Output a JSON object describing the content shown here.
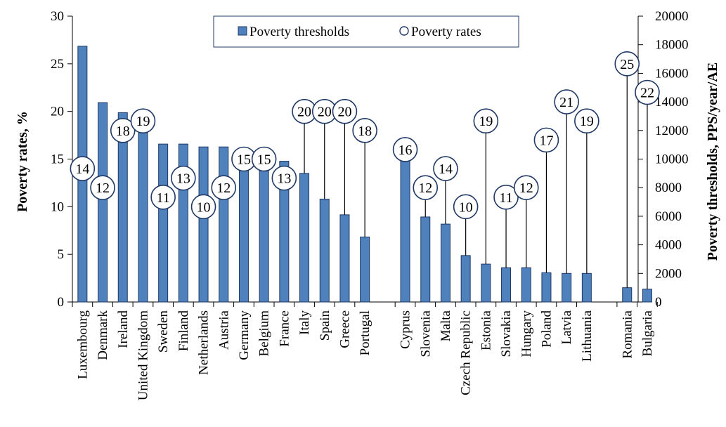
{
  "chart_data": {
    "type": "bar",
    "categories": [
      "Luxembourg",
      "Denmark",
      "Ireland",
      "United Kingdom",
      "Sweden",
      "Finland",
      "Netherlands",
      "Austria",
      "Germany",
      "Belgium",
      "France",
      "Italy",
      "Spain",
      "Greece",
      "Portugal",
      "Cyprus",
      "Slovenia",
      "Malta",
      "Czech Republic",
      "Estonia",
      "Slovakia",
      "Hungary",
      "Poland",
      "Latvia",
      "Lithuania",
      "Romania",
      "Bulgaria"
    ],
    "groups": [
      15,
      10,
      2
    ],
    "series": [
      {
        "name": "Poverty thresholds",
        "axis": "right",
        "style": "bar",
        "values": [
          17900,
          13950,
          13250,
          12450,
          11050,
          11050,
          10850,
          10850,
          10100,
          9750,
          9850,
          9000,
          7200,
          6100,
          4550,
          9950,
          5950,
          5450,
          3250,
          2650,
          2400,
          2400,
          2050,
          2000,
          2000,
          1000,
          900
        ]
      },
      {
        "name": "Poverty rates",
        "axis": "left",
        "style": "circle-label",
        "values": [
          14,
          12,
          18,
          19,
          11,
          13,
          10,
          12,
          15,
          15,
          13,
          20,
          20,
          20,
          18,
          16,
          12,
          14,
          10,
          19,
          11,
          12,
          17,
          21,
          19,
          25,
          22
        ],
        "labels": [
          "14",
          "12",
          "18",
          "19",
          "11",
          "13",
          "10",
          "12",
          "15",
          "15",
          "13",
          "20",
          "20",
          "20",
          "18",
          "16",
          "12",
          "14",
          "10",
          "19",
          "11",
          "12",
          "17",
          "21",
          "19",
          "25",
          "22"
        ]
      }
    ],
    "left_axis": {
      "label": "Poverty rates, %",
      "range": [
        0,
        30
      ],
      "ticks": [
        "0",
        "5",
        "10",
        "15",
        "20",
        "25",
        "30"
      ]
    },
    "right_axis": {
      "label": "Poverty thresholds, PPS/year/AE",
      "range": [
        0,
        20000
      ],
      "ticks": [
        "0",
        "2000",
        "4000",
        "6000",
        "8000",
        "10000",
        "12000",
        "14000",
        "16000",
        "18000",
        "20000"
      ]
    },
    "legend": {
      "position": "top-center"
    },
    "colors": {
      "bar_fill": "#4f81bd",
      "bar_stroke": "#1f3864",
      "circle_stroke": "#1f3864",
      "circle_fill": "#ffffff",
      "line": "#000000"
    }
  }
}
